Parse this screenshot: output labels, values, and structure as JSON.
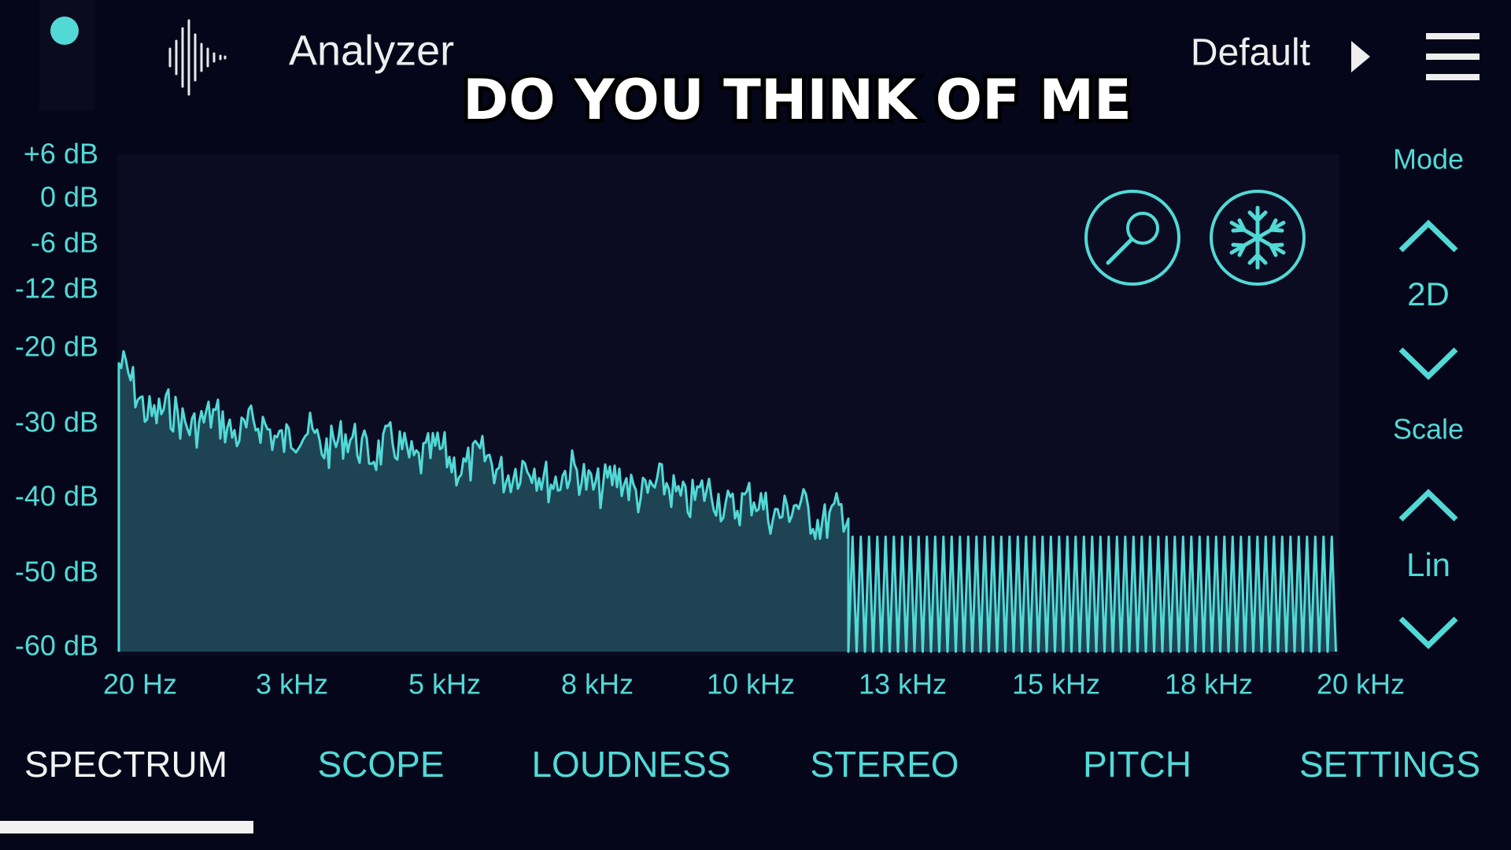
{
  "header": {
    "title": "Analyzer",
    "preset": "Default"
  },
  "caption": "DO YOU THINK OF ME",
  "y_axis_labels": [
    "+6 dB",
    "0 dB",
    "-6 dB",
    "-12 dB",
    "-20 dB",
    "-30 dB",
    "-40 dB",
    "-50 dB",
    "-60 dB"
  ],
  "x_axis_labels": [
    "20 Hz",
    "3 kHz",
    "5 kHz",
    "8 kHz",
    "10 kHz",
    "13 kHz",
    "15 kHz",
    "18 kHz",
    "20 kHz"
  ],
  "side_controls": {
    "mode_label": "Mode",
    "mode_value": "2D",
    "scale_label": "Scale",
    "scale_value": "Lin"
  },
  "tabs": [
    "SPECTRUM",
    "SCOPE",
    "LOUDNESS",
    "STEREO",
    "PITCH",
    "SETTINGS"
  ]
}
